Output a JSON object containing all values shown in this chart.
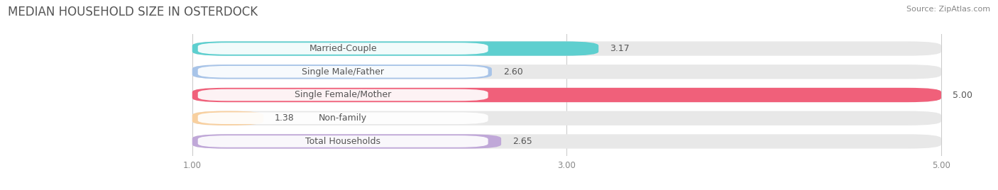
{
  "title": "MEDIAN HOUSEHOLD SIZE IN OSTERDOCK",
  "source": "Source: ZipAtlas.com",
  "categories": [
    "Married-Couple",
    "Single Male/Father",
    "Single Female/Mother",
    "Non-family",
    "Total Households"
  ],
  "values": [
    3.17,
    2.6,
    5.0,
    1.38,
    2.65
  ],
  "bar_colors": [
    "#5ecfcf",
    "#a8c4e8",
    "#f0607a",
    "#f8d0a0",
    "#c0a8d8"
  ],
  "label_bg_color": "#ffffff",
  "xlim_min": 0.0,
  "xlim_max": 5.25,
  "xdata_min": 1.0,
  "xdata_max": 5.0,
  "xticks": [
    1.0,
    3.0,
    5.0
  ],
  "xtick_labels": [
    "1.00",
    "3.00",
    "5.00"
  ],
  "title_fontsize": 12,
  "label_fontsize": 9,
  "value_fontsize": 9,
  "source_fontsize": 8,
  "background_color": "#ffffff",
  "bar_bg_color": "#e8e8e8",
  "grid_color": "#cccccc",
  "bar_height": 0.62,
  "bar_gap": 0.38
}
